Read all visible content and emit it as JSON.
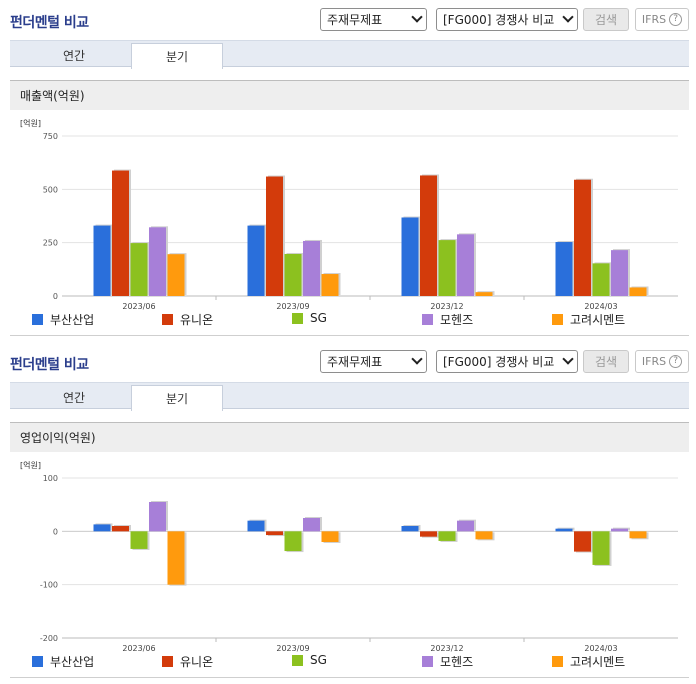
{
  "sections": [
    {
      "title": "펀더멘털 비교",
      "controls": {
        "select_statement": "주재무제표",
        "select_peer": "[FG000] 경쟁사 비교",
        "search_button": "검색",
        "ifrs_label": "IFRS",
        "help_symbol": "?"
      },
      "tabs": [
        {
          "label": "연간",
          "active": false
        },
        {
          "label": "분기",
          "active": true
        }
      ],
      "chart_header": "매출액(억원)",
      "chart_data": {
        "type": "bar",
        "unit_label": "[억원]",
        "categories": [
          "2023/06",
          "2023/09",
          "2023/12",
          "2024/03"
        ],
        "ylim": [
          0,
          750
        ],
        "yticks": [
          0,
          250,
          500,
          750
        ],
        "grid": true,
        "legend_position": "bottom",
        "series": [
          {
            "name": "부산산업",
            "color": "#2a6fdb",
            "values": [
              330,
              330,
              368,
              253
            ]
          },
          {
            "name": "유니온",
            "color": "#d33b0b",
            "values": [
              588,
              560,
              565,
              545
            ]
          },
          {
            "name": "SG",
            "color": "#8cc11f",
            "values": [
              248,
              197,
              262,
              153
            ]
          },
          {
            "name": "모헨즈",
            "color": "#a77fd8",
            "values": [
              322,
              258,
              289,
              215
            ]
          },
          {
            "name": "고려시멘트",
            "color": "#ff9a0d",
            "values": [
              196,
              103,
              18,
              40
            ]
          }
        ]
      }
    },
    {
      "title": "펀더멘털 비교",
      "controls": {
        "select_statement": "주재무제표",
        "select_peer": "[FG000] 경쟁사 비교",
        "search_button": "검색",
        "ifrs_label": "IFRS",
        "help_symbol": "?"
      },
      "tabs": [
        {
          "label": "연간",
          "active": false
        },
        {
          "label": "분기",
          "active": true
        }
      ],
      "chart_header": "영업이익(억원)",
      "chart_data": {
        "type": "bar",
        "unit_label": "[억원]",
        "categories": [
          "2023/06",
          "2023/09",
          "2023/12",
          "2024/03"
        ],
        "ylim": [
          -200,
          100
        ],
        "yticks": [
          -200,
          -100,
          0,
          100
        ],
        "grid": true,
        "legend_position": "bottom",
        "series": [
          {
            "name": "부산산업",
            "color": "#2a6fdb",
            "values": [
              13,
              20,
              10,
              5
            ]
          },
          {
            "name": "유니온",
            "color": "#d33b0b",
            "values": [
              10,
              -7,
              -10,
              -38
            ]
          },
          {
            "name": "SG",
            "color": "#8cc11f",
            "values": [
              -33,
              -37,
              -18,
              -63
            ]
          },
          {
            "name": "모헨즈",
            "color": "#a77fd8",
            "values": [
              55,
              25,
              20,
              5
            ]
          },
          {
            "name": "고려시멘트",
            "color": "#ff9a0d",
            "values": [
              -100,
              -20,
              -15,
              -13
            ]
          }
        ]
      }
    }
  ]
}
